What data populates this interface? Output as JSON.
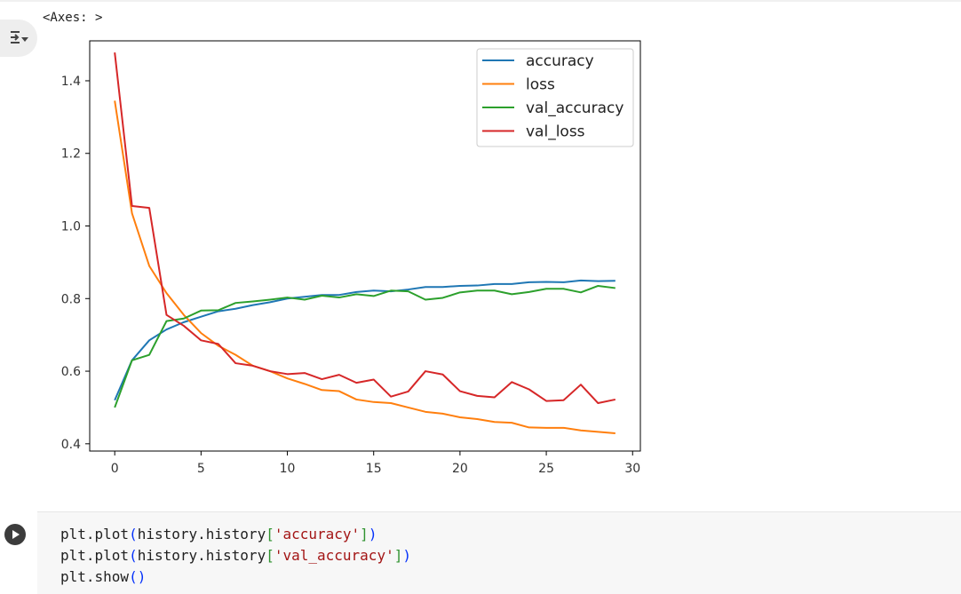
{
  "output": {
    "repr_text": "<Axes: >",
    "toggle_icon": "output-collapse-icon"
  },
  "chart_data": {
    "type": "line",
    "x": [
      0,
      1,
      2,
      3,
      4,
      5,
      6,
      7,
      8,
      9,
      10,
      11,
      12,
      13,
      14,
      15,
      16,
      17,
      18,
      19,
      20,
      21,
      22,
      23,
      24,
      25,
      26,
      27,
      28,
      29
    ],
    "xlim": [
      -1.45,
      30.45
    ],
    "ylim": [
      0.38,
      1.51
    ],
    "xticks": [
      0,
      5,
      10,
      15,
      20,
      25,
      30
    ],
    "yticks": [
      0.4,
      0.6,
      0.8,
      1.0,
      1.2,
      1.4
    ],
    "xticklabels": [
      "0",
      "5",
      "10",
      "15",
      "20",
      "25",
      "30"
    ],
    "yticklabels": [
      "0.4",
      "0.6",
      "0.8",
      "1.0",
      "1.2",
      "1.4"
    ],
    "grid": false,
    "legend_position": "upper right",
    "series": [
      {
        "name": "accuracy",
        "color": "#1f77b4",
        "values": [
          0.52,
          0.63,
          0.685,
          0.715,
          0.735,
          0.75,
          0.765,
          0.772,
          0.782,
          0.79,
          0.8,
          0.805,
          0.81,
          0.81,
          0.818,
          0.822,
          0.82,
          0.825,
          0.832,
          0.832,
          0.835,
          0.836,
          0.84,
          0.84,
          0.845,
          0.846,
          0.845,
          0.85,
          0.848,
          0.849
        ]
      },
      {
        "name": "loss",
        "color": "#ff7f0e",
        "values": [
          1.345,
          1.035,
          0.89,
          0.815,
          0.755,
          0.705,
          0.67,
          0.645,
          0.615,
          0.6,
          0.58,
          0.565,
          0.548,
          0.545,
          0.522,
          0.515,
          0.512,
          0.5,
          0.488,
          0.483,
          0.473,
          0.468,
          0.46,
          0.458,
          0.445,
          0.444,
          0.444,
          0.437,
          0.433,
          0.429
        ]
      },
      {
        "name": "val_accuracy",
        "color": "#2ca02c",
        "values": [
          0.5,
          0.63,
          0.645,
          0.738,
          0.745,
          0.767,
          0.768,
          0.788,
          0.792,
          0.797,
          0.803,
          0.797,
          0.808,
          0.803,
          0.812,
          0.807,
          0.822,
          0.82,
          0.797,
          0.802,
          0.817,
          0.822,
          0.822,
          0.812,
          0.818,
          0.827,
          0.827,
          0.817,
          0.835,
          0.829
        ]
      },
      {
        "name": "val_loss",
        "color": "#d62728",
        "values": [
          1.478,
          1.055,
          1.05,
          0.755,
          0.725,
          0.685,
          0.675,
          0.622,
          0.615,
          0.6,
          0.592,
          0.595,
          0.578,
          0.59,
          0.568,
          0.577,
          0.53,
          0.544,
          0.6,
          0.591,
          0.545,
          0.532,
          0.528,
          0.57,
          0.55,
          0.518,
          0.52,
          0.563,
          0.512,
          0.522
        ]
      }
    ]
  },
  "code_cell": {
    "run_icon": "play-icon",
    "lines": [
      {
        "pre": "plt.plot",
        "open_paren": "(",
        "obj": "history.history",
        "open_br": "[",
        "str": "'accuracy'",
        "close_br": "]",
        "close_paren": ")"
      },
      {
        "pre": "plt.plot",
        "open_paren": "(",
        "obj": "history.history",
        "open_br": "[",
        "str": "'val_accuracy'",
        "close_br": "]",
        "close_paren": ")"
      },
      {
        "pre": "plt.show",
        "open_paren": "(",
        "obj": "",
        "open_br": "",
        "str": "",
        "close_br": "",
        "close_paren": ")"
      }
    ]
  }
}
